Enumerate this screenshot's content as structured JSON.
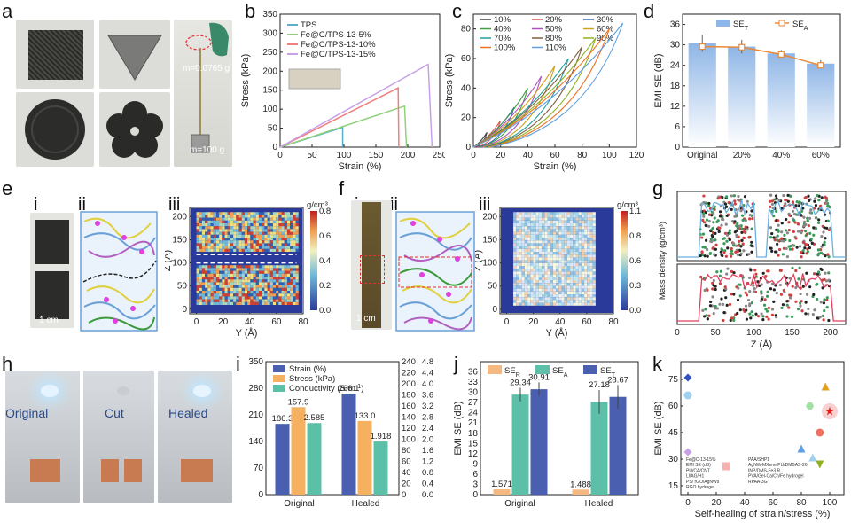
{
  "panels": {
    "a": {
      "label": "a",
      "mass_top": "m=0.0765 g",
      "mass_bottom": "m=100 g"
    },
    "b": {
      "label": "b"
    },
    "c": {
      "label": "c"
    },
    "d": {
      "label": "d"
    },
    "e": {
      "label": "e",
      "sub_i": "i",
      "sub_ii": "ii",
      "sub_iii": "iii",
      "scale": "1 cm"
    },
    "f": {
      "label": "f",
      "sub_i": "i",
      "sub_ii": "ii",
      "sub_iii": "iii",
      "scale": "1 cm"
    },
    "g": {
      "label": "g"
    },
    "h": {
      "label": "h",
      "state1": "Original",
      "state2": "Cut",
      "state3": "Healed"
    },
    "i": {
      "label": "i"
    },
    "j": {
      "label": "j"
    },
    "k": {
      "label": "k"
    }
  },
  "chart_data": [
    {
      "id": "b",
      "type": "line",
      "xlabel": "Strain (%)",
      "ylabel": "Stress (kPa)",
      "xlim": [
        0,
        250
      ],
      "ylim": [
        0,
        350
      ],
      "xticks": [
        0,
        50,
        100,
        150,
        200,
        250
      ],
      "yticks": [
        0,
        50,
        100,
        150,
        200,
        250,
        300,
        350
      ],
      "legend": "top-left",
      "series": [
        {
          "name": "TPS",
          "color": "#5ab0c8",
          "points": [
            [
              0,
              0
            ],
            [
              98,
              52
            ],
            [
              98,
              0
            ]
          ]
        },
        {
          "name": "Fe@C/TPS-13-5%",
          "color": "#8fd07a",
          "points": [
            [
              0,
              0
            ],
            [
              195,
              108
            ],
            [
              198,
              0
            ]
          ]
        },
        {
          "name": "Fe@C/TPS-13-10%",
          "color": "#f08080",
          "points": [
            [
              0,
              0
            ],
            [
              185,
              156
            ],
            [
              186,
              0
            ]
          ]
        },
        {
          "name": "Fe@C/TPS-13-15%",
          "color": "#c8a0e8",
          "points": [
            [
              0,
              0
            ],
            [
              232,
              218
            ],
            [
              238,
              0
            ]
          ]
        }
      ]
    },
    {
      "id": "c",
      "type": "line",
      "xlabel": "Strain (%)",
      "ylabel": "Stress (kPa)",
      "xlim": [
        0,
        120
      ],
      "ylim": [
        0,
        90
      ],
      "xticks": [
        0,
        20,
        40,
        60,
        80,
        100,
        120
      ],
      "yticks": [
        0,
        20,
        40,
        60,
        80
      ],
      "legend": "top",
      "series": [
        {
          "name": "10%",
          "color": "#444444",
          "peak": [
            10,
            10
          ]
        },
        {
          "name": "20%",
          "color": "#e05050",
          "peak": [
            20,
            18
          ]
        },
        {
          "name": "30%",
          "color": "#3070c0",
          "peak": [
            30,
            27
          ]
        },
        {
          "name": "40%",
          "color": "#40a040",
          "peak": [
            40,
            40
          ]
        },
        {
          "name": "50%",
          "color": "#b050c0",
          "peak": [
            50,
            48
          ]
        },
        {
          "name": "60%",
          "color": "#d0a020",
          "peak": [
            60,
            55
          ]
        },
        {
          "name": "70%",
          "color": "#20a0a0",
          "peak": [
            70,
            60
          ]
        },
        {
          "name": "80%",
          "color": "#806040",
          "peak": [
            80,
            68
          ]
        },
        {
          "name": "90%",
          "color": "#90b020",
          "peak": [
            90,
            74
          ]
        },
        {
          "name": "100%",
          "color": "#f07020",
          "peak": [
            100,
            80
          ]
        },
        {
          "name": "110%",
          "color": "#60a0e0",
          "peak": [
            110,
            84
          ]
        }
      ]
    },
    {
      "id": "d",
      "type": "bar",
      "xlabel": "",
      "ylabel": "EMI SE (dB)",
      "ylim": [
        0,
        39
      ],
      "yticks": [
        0,
        6,
        12,
        18,
        24,
        30,
        36
      ],
      "legend": "top",
      "categories": [
        "Original",
        "20%",
        "40%",
        "60%"
      ],
      "series": [
        {
          "name": "SE_T",
          "label_main": "SE",
          "label_sub": "T",
          "type": "bar",
          "color": "#8fb6e6",
          "values": [
            30.5,
            29.5,
            27.5,
            24.5
          ],
          "errors": [
            2.5,
            2.0,
            1.0,
            1.0
          ]
        },
        {
          "name": "SE_A",
          "label_main": "SE",
          "label_sub": "A",
          "type": "line",
          "color": "#e8883a",
          "values": [
            29.5,
            29.3,
            27.2,
            24.0
          ]
        }
      ]
    },
    {
      "id": "e-iii",
      "type": "heatmap",
      "xlabel": "Y (Å)",
      "ylabel": "Z (Å)",
      "xlim": [
        -5,
        80
      ],
      "ylim": [
        -10,
        220
      ],
      "xticks": [
        0,
        20,
        40,
        60,
        80
      ],
      "yticks": [
        0,
        50,
        100,
        150,
        200
      ],
      "colorbar": {
        "title": "g/cm³",
        "ticks": [
          0.0,
          0.2,
          0.4,
          0.6,
          0.8
        ]
      }
    },
    {
      "id": "f-iii",
      "type": "heatmap",
      "xlabel": "Y (Å)",
      "ylabel": "Z (Å)",
      "xlim": [
        -5,
        80
      ],
      "ylim": [
        -10,
        220
      ],
      "xticks": [
        0,
        20,
        40,
        60,
        80
      ],
      "yticks": [
        0,
        50,
        100,
        150,
        200
      ],
      "colorbar": {
        "title": "g/cm³",
        "ticks": [
          0.0,
          0.3,
          0.6,
          0.8,
          1.1
        ]
      }
    },
    {
      "id": "g",
      "type": "line",
      "xlabel": "Z (Å)",
      "ylabel": "Mass density (g/cm³)",
      "xlim": [
        0,
        220
      ],
      "xticks": [
        0,
        50,
        100,
        150,
        200
      ]
    },
    {
      "id": "i",
      "type": "bar",
      "categories": [
        "Original",
        "Healed"
      ],
      "ylim_left": [
        0,
        350
      ],
      "yticks_left": [
        0,
        70,
        140,
        210,
        280,
        350
      ],
      "ylim_right_outer": [
        0,
        240
      ],
      "yticks_right_outer": [
        0,
        20,
        40,
        60,
        80,
        100,
        120,
        140,
        160,
        180,
        200,
        220,
        240
      ],
      "ylim_right_inner": [
        0,
        4.8
      ],
      "yticks_right_inner": [
        0.0,
        0.4,
        0.8,
        1.2,
        1.6,
        2.0,
        2.4,
        2.8,
        3.2,
        3.6,
        4.0,
        4.4,
        4.8
      ],
      "legend": "top-left",
      "series": [
        {
          "name": "Strain (%)",
          "color": "#4a5fb0",
          "values": [
            186.3,
            266.1
          ]
        },
        {
          "name": "Stress (kPa)",
          "color": "#f5b060",
          "values": [
            157.9,
            133.0
          ]
        },
        {
          "name": "Conductivity (S·m⁻¹)",
          "label_main": "Conductivity (S·m",
          "label_sup": "-1",
          "label_end": ")",
          "color": "#5cc0a8",
          "values": [
            2.585,
            1.918
          ]
        }
      ],
      "data_labels": [
        "186.3",
        "157.9",
        "2.585",
        "266.1",
        "133.0",
        "1.918"
      ]
    },
    {
      "id": "j",
      "type": "bar",
      "ylabel": "EMI SE (dB)",
      "ylim": [
        0,
        39
      ],
      "yticks": [
        0,
        3,
        6,
        9,
        12,
        15,
        18,
        21,
        24,
        27,
        30,
        33,
        36
      ],
      "legend": "top",
      "categories": [
        "Original",
        "Healed"
      ],
      "series": [
        {
          "name": "SE_R",
          "label_main": "SE",
          "label_sub": "R",
          "color": "#f5b880",
          "values": [
            1.571,
            1.488
          ]
        },
        {
          "name": "SE_A",
          "label_main": "SE",
          "label_sub": "A",
          "color": "#5cc0a8",
          "values": [
            29.34,
            27.18
          ],
          "errors": [
            2.0,
            3.5
          ]
        },
        {
          "name": "SE_T",
          "label_main": "SE",
          "label_sub": "T",
          "color": "#4a5fb0",
          "values": [
            30.91,
            28.67
          ],
          "errors": [
            2.0,
            3.5
          ]
        }
      ],
      "data_labels": [
        "1.571",
        "29.34",
        "30.91",
        "1.488",
        "27.18",
        "28.67"
      ]
    },
    {
      "id": "k",
      "type": "scatter",
      "xlabel": "Self-healing of strain/stress (%)",
      "ylabel": "EMI SE (dB)",
      "xlim": [
        -5,
        110
      ],
      "ylim": [
        10,
        85
      ],
      "xticks": [
        0,
        20,
        40,
        60,
        80,
        100
      ],
      "yticks": [
        15,
        30,
        45,
        60,
        75
      ],
      "legend": "bottom-left",
      "points": [
        {
          "x": 0,
          "y": 76,
          "color": "#3050c0",
          "shape": "diamond"
        },
        {
          "x": 0,
          "y": 66,
          "color": "#a0d0f0",
          "shape": "circle"
        },
        {
          "x": 0,
          "y": 34,
          "color": "#c8a0e8",
          "shape": "diamond"
        },
        {
          "x": 27,
          "y": 26,
          "color": "#f5b0b0",
          "shape": "square"
        },
        {
          "x": 86,
          "y": 60,
          "color": "#a0e0a0",
          "shape": "hexagon"
        },
        {
          "x": 80,
          "y": 36,
          "color": "#60a0e0",
          "shape": "triangle"
        },
        {
          "x": 88,
          "y": 31,
          "color": "#a0d0f0",
          "shape": "triangle"
        },
        {
          "x": 93,
          "y": 27,
          "color": "#90b020",
          "shape": "triangle-down"
        },
        {
          "x": 93,
          "y": 45,
          "color": "#f07060",
          "shape": "circle"
        },
        {
          "x": 97,
          "y": 71,
          "color": "#e0a020",
          "shape": "triangle"
        },
        {
          "x": 100,
          "y": 57,
          "color": "#e02020",
          "shape": "star"
        }
      ],
      "legend_entries": [
        "Fe@C-13-15%",
        "EMI SE (dB)",
        "PU/CA/CNT",
        "Ll/AG/H1",
        "PS/ rGO/AgNWs",
        "RGO hydrogel",
        "PAA/SHP1",
        "AgNW-MXene/PU/DMBAS-26",
        "INP/DMS-Fe3 R",
        "PVA/Gel-Ca/Cn/Fe hydrogel",
        "RPAA-3G"
      ]
    }
  ]
}
